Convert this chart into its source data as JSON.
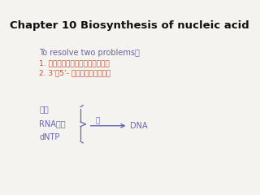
{
  "title": "Chapter 10 Biosynthesis of nucleic acid",
  "title_color": "#111111",
  "title_fontsize": 9.5,
  "bg_color": "#f5f3ef",
  "problem_header": "To resolve two problems：",
  "problem_header_color": "#7060a0",
  "problem1": "1. 核苷酸序列如何保证准确无误？",
  "problem2": "2. 3’，5’- Ⓟ二酩键如何形成？",
  "problem_color": "#c05030",
  "label1": "模板",
  "label2": "RNA引物",
  "label3": "dNTP",
  "label_color": "#6666bb",
  "enzyme_label": "酶",
  "dna_label": "> DNA",
  "reaction_color": "#6666bb"
}
